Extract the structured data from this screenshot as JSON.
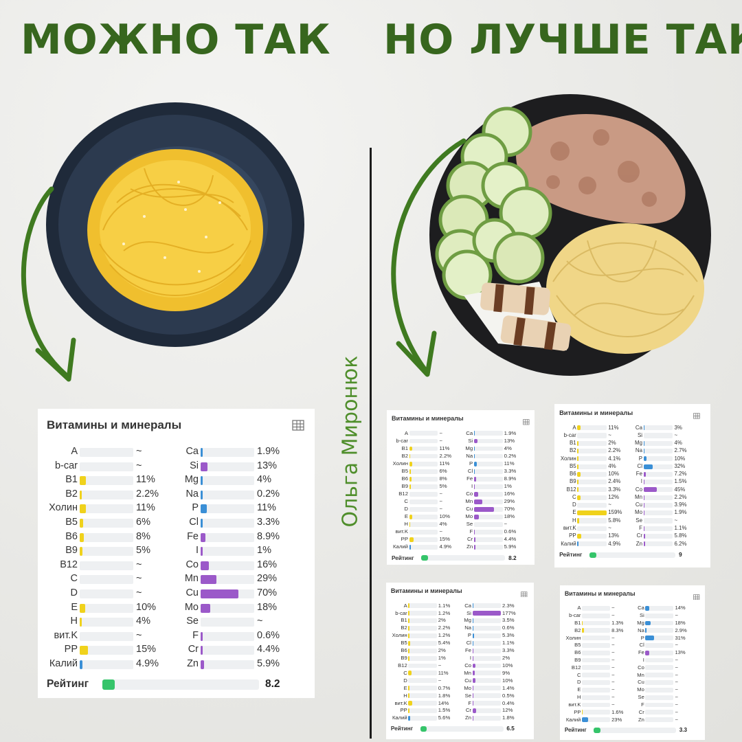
{
  "headline_left": "МОЖНО ТАК",
  "headline_right": "НО ЛУЧШЕ ТАК",
  "signature": "Ольга Миронюк",
  "colors": {
    "headline": "#37661e",
    "arrow": "#3f7a20",
    "vitamin_bar": "#f0d21c",
    "mineral_bar": "#9b59c9",
    "blue_bar": "#3a8fd6",
    "rating_bar": "#35c46a"
  },
  "cards": [
    {
      "title": "Витамины и минералы",
      "icon": "table-icon",
      "rating_label": "Рейтинг",
      "rating": "8.2",
      "left": [
        {
          "n": "A",
          "v": "~",
          "f": 0,
          "c": "y"
        },
        {
          "n": "b-car",
          "v": "~",
          "f": 0,
          "c": "y"
        },
        {
          "n": "B1",
          "v": "11%",
          "f": 0.11,
          "c": "y"
        },
        {
          "n": "B2",
          "v": "2.2%",
          "f": 0.022,
          "c": "y"
        },
        {
          "n": "Холин",
          "v": "11%",
          "f": 0.11,
          "c": "y"
        },
        {
          "n": "B5",
          "v": "6%",
          "f": 0.06,
          "c": "y"
        },
        {
          "n": "B6",
          "v": "8%",
          "f": 0.08,
          "c": "y"
        },
        {
          "n": "B9",
          "v": "5%",
          "f": 0.05,
          "c": "y"
        },
        {
          "n": "B12",
          "v": "~",
          "f": 0,
          "c": "y"
        },
        {
          "n": "C",
          "v": "~",
          "f": 0,
          "c": "y"
        },
        {
          "n": "D",
          "v": "~",
          "f": 0,
          "c": "y"
        },
        {
          "n": "E",
          "v": "10%",
          "f": 0.1,
          "c": "y"
        },
        {
          "n": "H",
          "v": "4%",
          "f": 0.04,
          "c": "y"
        },
        {
          "n": "вит.K",
          "v": "~",
          "f": 0,
          "c": "y"
        },
        {
          "n": "PP",
          "v": "15%",
          "f": 0.15,
          "c": "y"
        },
        {
          "n": "Калий",
          "v": "4.9%",
          "f": 0.049,
          "c": "b"
        }
      ],
      "right": [
        {
          "n": "Ca",
          "v": "1.9%",
          "f": 0.019,
          "c": "b"
        },
        {
          "n": "Si",
          "v": "13%",
          "f": 0.13,
          "c": "p"
        },
        {
          "n": "Mg",
          "v": "4%",
          "f": 0.04,
          "c": "b"
        },
        {
          "n": "Na",
          "v": "0.2%",
          "f": 0.002,
          "c": "b"
        },
        {
          "n": "P",
          "v": "11%",
          "f": 0.11,
          "c": "b"
        },
        {
          "n": "Cl",
          "v": "3.3%",
          "f": 0.033,
          "c": "b"
        },
        {
          "n": "Fe",
          "v": "8.9%",
          "f": 0.089,
          "c": "p"
        },
        {
          "n": "I",
          "v": "1%",
          "f": 0.01,
          "c": "p"
        },
        {
          "n": "Co",
          "v": "16%",
          "f": 0.16,
          "c": "p"
        },
        {
          "n": "Mn",
          "v": "29%",
          "f": 0.29,
          "c": "p"
        },
        {
          "n": "Cu",
          "v": "70%",
          "f": 0.7,
          "c": "p"
        },
        {
          "n": "Mo",
          "v": "18%",
          "f": 0.18,
          "c": "p"
        },
        {
          "n": "Se",
          "v": "~",
          "f": 0,
          "c": "p"
        },
        {
          "n": "F",
          "v": "0.6%",
          "f": 0.006,
          "c": "p"
        },
        {
          "n": "Cr",
          "v": "4.4%",
          "f": 0.044,
          "c": "p"
        },
        {
          "n": "Zn",
          "v": "5.9%",
          "f": 0.059,
          "c": "p"
        }
      ]
    },
    {
      "title": "Витамины и минералы",
      "icon": "table-icon",
      "rating_label": "Рейтинг",
      "rating": "8.2",
      "left": [
        {
          "n": "A",
          "v": "~",
          "f": 0,
          "c": "y"
        },
        {
          "n": "b-car",
          "v": "~",
          "f": 0,
          "c": "y"
        },
        {
          "n": "B1",
          "v": "11%",
          "f": 0.11,
          "c": "y"
        },
        {
          "n": "B2",
          "v": "2.2%",
          "f": 0.022,
          "c": "y"
        },
        {
          "n": "Холин",
          "v": "11%",
          "f": 0.11,
          "c": "y"
        },
        {
          "n": "B5",
          "v": "6%",
          "f": 0.06,
          "c": "y"
        },
        {
          "n": "B6",
          "v": "8%",
          "f": 0.08,
          "c": "y"
        },
        {
          "n": "B9",
          "v": "5%",
          "f": 0.05,
          "c": "y"
        },
        {
          "n": "B12",
          "v": "~",
          "f": 0,
          "c": "y"
        },
        {
          "n": "C",
          "v": "~",
          "f": 0,
          "c": "y"
        },
        {
          "n": "D",
          "v": "~",
          "f": 0,
          "c": "y"
        },
        {
          "n": "E",
          "v": "10%",
          "f": 0.1,
          "c": "y"
        },
        {
          "n": "H",
          "v": "4%",
          "f": 0.04,
          "c": "y"
        },
        {
          "n": "вит.K",
          "v": "~",
          "f": 0,
          "c": "y"
        },
        {
          "n": "PP",
          "v": "15%",
          "f": 0.15,
          "c": "y"
        },
        {
          "n": "Калий",
          "v": "4.9%",
          "f": 0.049,
          "c": "b"
        }
      ],
      "right": [
        {
          "n": "Ca",
          "v": "1.9%",
          "f": 0.019,
          "c": "b"
        },
        {
          "n": "Si",
          "v": "13%",
          "f": 0.13,
          "c": "p"
        },
        {
          "n": "Mg",
          "v": "4%",
          "f": 0.04,
          "c": "b"
        },
        {
          "n": "Na",
          "v": "0.2%",
          "f": 0.002,
          "c": "b"
        },
        {
          "n": "P",
          "v": "11%",
          "f": 0.11,
          "c": "b"
        },
        {
          "n": "Cl",
          "v": "3.3%",
          "f": 0.033,
          "c": "b"
        },
        {
          "n": "Fe",
          "v": "8.9%",
          "f": 0.089,
          "c": "p"
        },
        {
          "n": "I",
          "v": "1%",
          "f": 0.01,
          "c": "p"
        },
        {
          "n": "Co",
          "v": "16%",
          "f": 0.16,
          "c": "p"
        },
        {
          "n": "Mn",
          "v": "29%",
          "f": 0.29,
          "c": "p"
        },
        {
          "n": "Cu",
          "v": "70%",
          "f": 0.7,
          "c": "p"
        },
        {
          "n": "Mo",
          "v": "18%",
          "f": 0.18,
          "c": "p"
        },
        {
          "n": "Se",
          "v": "~",
          "f": 0,
          "c": "p"
        },
        {
          "n": "F",
          "v": "0.6%",
          "f": 0.006,
          "c": "p"
        },
        {
          "n": "Cr",
          "v": "4.4%",
          "f": 0.044,
          "c": "p"
        },
        {
          "n": "Zn",
          "v": "5.9%",
          "f": 0.059,
          "c": "p"
        }
      ]
    },
    {
      "title": "Витамины и минералы",
      "icon": "table-icon",
      "rating_label": "Рейтинг",
      "rating": "9",
      "left": [
        {
          "n": "A",
          "v": "11%",
          "f": 0.11,
          "c": "y"
        },
        {
          "n": "b-car",
          "v": "~",
          "f": 0,
          "c": "y"
        },
        {
          "n": "B1",
          "v": "2%",
          "f": 0.02,
          "c": "y"
        },
        {
          "n": "B2",
          "v": "2.2%",
          "f": 0.022,
          "c": "y"
        },
        {
          "n": "Холин",
          "v": "4.1%",
          "f": 0.041,
          "c": "y"
        },
        {
          "n": "B5",
          "v": "4%",
          "f": 0.04,
          "c": "y"
        },
        {
          "n": "B6",
          "v": "10%",
          "f": 0.1,
          "c": "y"
        },
        {
          "n": "B9",
          "v": "2.4%",
          "f": 0.024,
          "c": "y"
        },
        {
          "n": "B12",
          "v": "3.3%",
          "f": 0.033,
          "c": "y"
        },
        {
          "n": "C",
          "v": "12%",
          "f": 0.12,
          "c": "y"
        },
        {
          "n": "D",
          "v": "~",
          "f": 0,
          "c": "y"
        },
        {
          "n": "E",
          "v": "159%",
          "f": 1,
          "c": "y"
        },
        {
          "n": "H",
          "v": "5.8%",
          "f": 0.058,
          "c": "y"
        },
        {
          "n": "вит.K",
          "v": "~",
          "f": 0,
          "c": "y"
        },
        {
          "n": "PP",
          "v": "13%",
          "f": 0.13,
          "c": "y"
        },
        {
          "n": "Калий",
          "v": "4.9%",
          "f": 0.049,
          "c": "b"
        }
      ],
      "right": [
        {
          "n": "Ca",
          "v": "3%",
          "f": 0.03,
          "c": "b"
        },
        {
          "n": "Si",
          "v": "~",
          "f": 0,
          "c": "p"
        },
        {
          "n": "Mg",
          "v": "4%",
          "f": 0.04,
          "c": "b"
        },
        {
          "n": "Na",
          "v": "2.7%",
          "f": 0.027,
          "c": "b"
        },
        {
          "n": "P",
          "v": "10%",
          "f": 0.1,
          "c": "b"
        },
        {
          "n": "Cl",
          "v": "32%",
          "f": 0.32,
          "c": "b"
        },
        {
          "n": "Fe",
          "v": "7.2%",
          "f": 0.072,
          "c": "p"
        },
        {
          "n": "I",
          "v": "1.5%",
          "f": 0.015,
          "c": "p"
        },
        {
          "n": "Co",
          "v": "45%",
          "f": 0.45,
          "c": "p"
        },
        {
          "n": "Mn",
          "v": "2.2%",
          "f": 0.022,
          "c": "p"
        },
        {
          "n": "Cu",
          "v": "3.9%",
          "f": 0.039,
          "c": "p"
        },
        {
          "n": "Mo",
          "v": "1.9%",
          "f": 0.019,
          "c": "p"
        },
        {
          "n": "Se",
          "v": "~",
          "f": 0,
          "c": "p"
        },
        {
          "n": "F",
          "v": "1.1%",
          "f": 0.011,
          "c": "p"
        },
        {
          "n": "Cr",
          "v": "5.8%",
          "f": 0.058,
          "c": "p"
        },
        {
          "n": "Zn",
          "v": "6.2%",
          "f": 0.062,
          "c": "p"
        }
      ]
    },
    {
      "title": "Витамины и минералы",
      "icon": "table-icon",
      "rating_label": "Рейтинг",
      "rating": "6.5",
      "left": [
        {
          "n": "A",
          "v": "1.1%",
          "f": 0.011,
          "c": "y"
        },
        {
          "n": "b-car",
          "v": "1.2%",
          "f": 0.012,
          "c": "y"
        },
        {
          "n": "B1",
          "v": "2%",
          "f": 0.02,
          "c": "y"
        },
        {
          "n": "B2",
          "v": "2.2%",
          "f": 0.022,
          "c": "y"
        },
        {
          "n": "Холин",
          "v": "1.2%",
          "f": 0.012,
          "c": "y"
        },
        {
          "n": "B5",
          "v": "5.4%",
          "f": 0.054,
          "c": "y"
        },
        {
          "n": "B6",
          "v": "2%",
          "f": 0.02,
          "c": "y"
        },
        {
          "n": "B9",
          "v": "1%",
          "f": 0.01,
          "c": "y"
        },
        {
          "n": "B12",
          "v": "~",
          "f": 0,
          "c": "y"
        },
        {
          "n": "C",
          "v": "11%",
          "f": 0.11,
          "c": "y"
        },
        {
          "n": "D",
          "v": "~",
          "f": 0,
          "c": "y"
        },
        {
          "n": "E",
          "v": "0.7%",
          "f": 0.007,
          "c": "y"
        },
        {
          "n": "H",
          "v": "1.8%",
          "f": 0.018,
          "c": "y"
        },
        {
          "n": "вит.K",
          "v": "14%",
          "f": 0.14,
          "c": "y"
        },
        {
          "n": "PP",
          "v": "1.5%",
          "f": 0.015,
          "c": "y"
        },
        {
          "n": "Калий",
          "v": "5.6%",
          "f": 0.056,
          "c": "b"
        }
      ],
      "right": [
        {
          "n": "Ca",
          "v": "2.3%",
          "f": 0.023,
          "c": "b"
        },
        {
          "n": "Si",
          "v": "177%",
          "f": 1,
          "c": "p"
        },
        {
          "n": "Mg",
          "v": "3.5%",
          "f": 0.035,
          "c": "b"
        },
        {
          "n": "Na",
          "v": "0.6%",
          "f": 0.006,
          "c": "b"
        },
        {
          "n": "P",
          "v": "5.3%",
          "f": 0.053,
          "c": "b"
        },
        {
          "n": "Cl",
          "v": "1.1%",
          "f": 0.011,
          "c": "b"
        },
        {
          "n": "Fe",
          "v": "3.3%",
          "f": 0.033,
          "c": "p"
        },
        {
          "n": "I",
          "v": "2%",
          "f": 0.02,
          "c": "p"
        },
        {
          "n": "Co",
          "v": "10%",
          "f": 0.1,
          "c": "p"
        },
        {
          "n": "Mn",
          "v": "9%",
          "f": 0.09,
          "c": "p"
        },
        {
          "n": "Cu",
          "v": "10%",
          "f": 0.1,
          "c": "p"
        },
        {
          "n": "Mo",
          "v": "1.4%",
          "f": 0.014,
          "c": "p"
        },
        {
          "n": "Se",
          "v": "0.5%",
          "f": 0.005,
          "c": "p"
        },
        {
          "n": "F",
          "v": "0.4%",
          "f": 0.004,
          "c": "p"
        },
        {
          "n": "Cr",
          "v": "12%",
          "f": 0.12,
          "c": "p"
        },
        {
          "n": "Zn",
          "v": "1.8%",
          "f": 0.018,
          "c": "p"
        }
      ]
    },
    {
      "title": "Витамины и минералы",
      "icon": "table-icon",
      "rating_label": "Рейтинг",
      "rating": "3.3",
      "left": [
        {
          "n": "A",
          "v": "~",
          "f": 0,
          "c": "y"
        },
        {
          "n": "b-car",
          "v": "~",
          "f": 0,
          "c": "y"
        },
        {
          "n": "B1",
          "v": "1.3%",
          "f": 0.013,
          "c": "y"
        },
        {
          "n": "B2",
          "v": "8.3%",
          "f": 0.083,
          "c": "y"
        },
        {
          "n": "Холин",
          "v": "~",
          "f": 0,
          "c": "y"
        },
        {
          "n": "B5",
          "v": "~",
          "f": 0,
          "c": "y"
        },
        {
          "n": "B6",
          "v": "~",
          "f": 0,
          "c": "y"
        },
        {
          "n": "B9",
          "v": "~",
          "f": 0,
          "c": "y"
        },
        {
          "n": "B12",
          "v": "~",
          "f": 0,
          "c": "y"
        },
        {
          "n": "C",
          "v": "~",
          "f": 0,
          "c": "y"
        },
        {
          "n": "D",
          "v": "~",
          "f": 0,
          "c": "y"
        },
        {
          "n": "E",
          "v": "~",
          "f": 0,
          "c": "y"
        },
        {
          "n": "H",
          "v": "~",
          "f": 0,
          "c": "y"
        },
        {
          "n": "вит.K",
          "v": "~",
          "f": 0,
          "c": "y"
        },
        {
          "n": "PP",
          "v": "1.6%",
          "f": 0.016,
          "c": "y"
        },
        {
          "n": "Калий",
          "v": "23%",
          "f": 0.23,
          "c": "b"
        }
      ],
      "right": [
        {
          "n": "Ca",
          "v": "14%",
          "f": 0.14,
          "c": "b"
        },
        {
          "n": "Si",
          "v": "~",
          "f": 0,
          "c": "p"
        },
        {
          "n": "Mg",
          "v": "18%",
          "f": 0.18,
          "c": "b"
        },
        {
          "n": "Na",
          "v": "2.9%",
          "f": 0.029,
          "c": "b"
        },
        {
          "n": "P",
          "v": "31%",
          "f": 0.31,
          "c": "b"
        },
        {
          "n": "Cl",
          "v": "~",
          "f": 0,
          "c": "b"
        },
        {
          "n": "Fe",
          "v": "13%",
          "f": 0.13,
          "c": "p"
        },
        {
          "n": "I",
          "v": "~",
          "f": 0,
          "c": "p"
        },
        {
          "n": "Co",
          "v": "~",
          "f": 0,
          "c": "p"
        },
        {
          "n": "Mn",
          "v": "~",
          "f": 0,
          "c": "p"
        },
        {
          "n": "Cu",
          "v": "~",
          "f": 0,
          "c": "p"
        },
        {
          "n": "Mo",
          "v": "~",
          "f": 0,
          "c": "p"
        },
        {
          "n": "Se",
          "v": "~",
          "f": 0,
          "c": "p"
        },
        {
          "n": "F",
          "v": "~",
          "f": 0,
          "c": "p"
        },
        {
          "n": "Cr",
          "v": "~",
          "f": 0,
          "c": "p"
        },
        {
          "n": "Zn",
          "v": "~",
          "f": 0,
          "c": "p"
        }
      ]
    }
  ]
}
